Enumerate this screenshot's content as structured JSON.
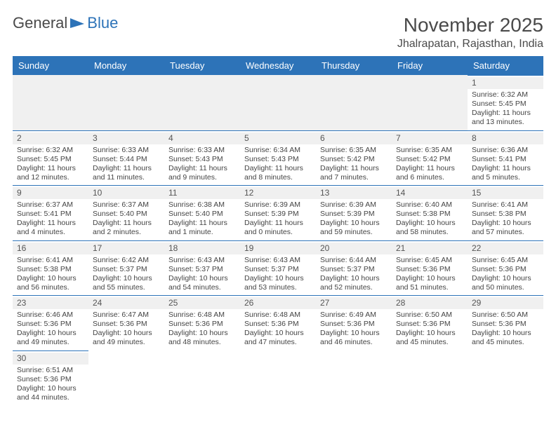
{
  "logo": {
    "word1": "General",
    "word2": "Blue"
  },
  "title": "November 2025",
  "location": "Jhalrapatan, Rajasthan, India",
  "colors": {
    "header_bg": "#2d73b8",
    "header_text": "#ffffff",
    "row_alt": "#f0f0f0",
    "border": "#2d73b8",
    "text": "#444444",
    "title_text": "#4a4a4a"
  },
  "day_names": [
    "Sunday",
    "Monday",
    "Tuesday",
    "Wednesday",
    "Thursday",
    "Friday",
    "Saturday"
  ],
  "weeks": [
    [
      null,
      null,
      null,
      null,
      null,
      null,
      {
        "n": "1",
        "sr": "6:32 AM",
        "ss": "5:45 PM",
        "dl": "11 hours and 13 minutes."
      }
    ],
    [
      {
        "n": "2",
        "sr": "6:32 AM",
        "ss": "5:45 PM",
        "dl": "11 hours and 12 minutes."
      },
      {
        "n": "3",
        "sr": "6:33 AM",
        "ss": "5:44 PM",
        "dl": "11 hours and 11 minutes."
      },
      {
        "n": "4",
        "sr": "6:33 AM",
        "ss": "5:43 PM",
        "dl": "11 hours and 9 minutes."
      },
      {
        "n": "5",
        "sr": "6:34 AM",
        "ss": "5:43 PM",
        "dl": "11 hours and 8 minutes."
      },
      {
        "n": "6",
        "sr": "6:35 AM",
        "ss": "5:42 PM",
        "dl": "11 hours and 7 minutes."
      },
      {
        "n": "7",
        "sr": "6:35 AM",
        "ss": "5:42 PM",
        "dl": "11 hours and 6 minutes."
      },
      {
        "n": "8",
        "sr": "6:36 AM",
        "ss": "5:41 PM",
        "dl": "11 hours and 5 minutes."
      }
    ],
    [
      {
        "n": "9",
        "sr": "6:37 AM",
        "ss": "5:41 PM",
        "dl": "11 hours and 4 minutes."
      },
      {
        "n": "10",
        "sr": "6:37 AM",
        "ss": "5:40 PM",
        "dl": "11 hours and 2 minutes."
      },
      {
        "n": "11",
        "sr": "6:38 AM",
        "ss": "5:40 PM",
        "dl": "11 hours and 1 minute."
      },
      {
        "n": "12",
        "sr": "6:39 AM",
        "ss": "5:39 PM",
        "dl": "11 hours and 0 minutes."
      },
      {
        "n": "13",
        "sr": "6:39 AM",
        "ss": "5:39 PM",
        "dl": "10 hours and 59 minutes."
      },
      {
        "n": "14",
        "sr": "6:40 AM",
        "ss": "5:38 PM",
        "dl": "10 hours and 58 minutes."
      },
      {
        "n": "15",
        "sr": "6:41 AM",
        "ss": "5:38 PM",
        "dl": "10 hours and 57 minutes."
      }
    ],
    [
      {
        "n": "16",
        "sr": "6:41 AM",
        "ss": "5:38 PM",
        "dl": "10 hours and 56 minutes."
      },
      {
        "n": "17",
        "sr": "6:42 AM",
        "ss": "5:37 PM",
        "dl": "10 hours and 55 minutes."
      },
      {
        "n": "18",
        "sr": "6:43 AM",
        "ss": "5:37 PM",
        "dl": "10 hours and 54 minutes."
      },
      {
        "n": "19",
        "sr": "6:43 AM",
        "ss": "5:37 PM",
        "dl": "10 hours and 53 minutes."
      },
      {
        "n": "20",
        "sr": "6:44 AM",
        "ss": "5:37 PM",
        "dl": "10 hours and 52 minutes."
      },
      {
        "n": "21",
        "sr": "6:45 AM",
        "ss": "5:36 PM",
        "dl": "10 hours and 51 minutes."
      },
      {
        "n": "22",
        "sr": "6:45 AM",
        "ss": "5:36 PM",
        "dl": "10 hours and 50 minutes."
      }
    ],
    [
      {
        "n": "23",
        "sr": "6:46 AM",
        "ss": "5:36 PM",
        "dl": "10 hours and 49 minutes."
      },
      {
        "n": "24",
        "sr": "6:47 AM",
        "ss": "5:36 PM",
        "dl": "10 hours and 49 minutes."
      },
      {
        "n": "25",
        "sr": "6:48 AM",
        "ss": "5:36 PM",
        "dl": "10 hours and 48 minutes."
      },
      {
        "n": "26",
        "sr": "6:48 AM",
        "ss": "5:36 PM",
        "dl": "10 hours and 47 minutes."
      },
      {
        "n": "27",
        "sr": "6:49 AM",
        "ss": "5:36 PM",
        "dl": "10 hours and 46 minutes."
      },
      {
        "n": "28",
        "sr": "6:50 AM",
        "ss": "5:36 PM",
        "dl": "10 hours and 45 minutes."
      },
      {
        "n": "29",
        "sr": "6:50 AM",
        "ss": "5:36 PM",
        "dl": "10 hours and 45 minutes."
      }
    ],
    [
      {
        "n": "30",
        "sr": "6:51 AM",
        "ss": "5:36 PM",
        "dl": "10 hours and 44 minutes."
      },
      null,
      null,
      null,
      null,
      null,
      null
    ]
  ],
  "labels": {
    "sunrise": "Sunrise:",
    "sunset": "Sunset:",
    "daylight": "Daylight:"
  }
}
